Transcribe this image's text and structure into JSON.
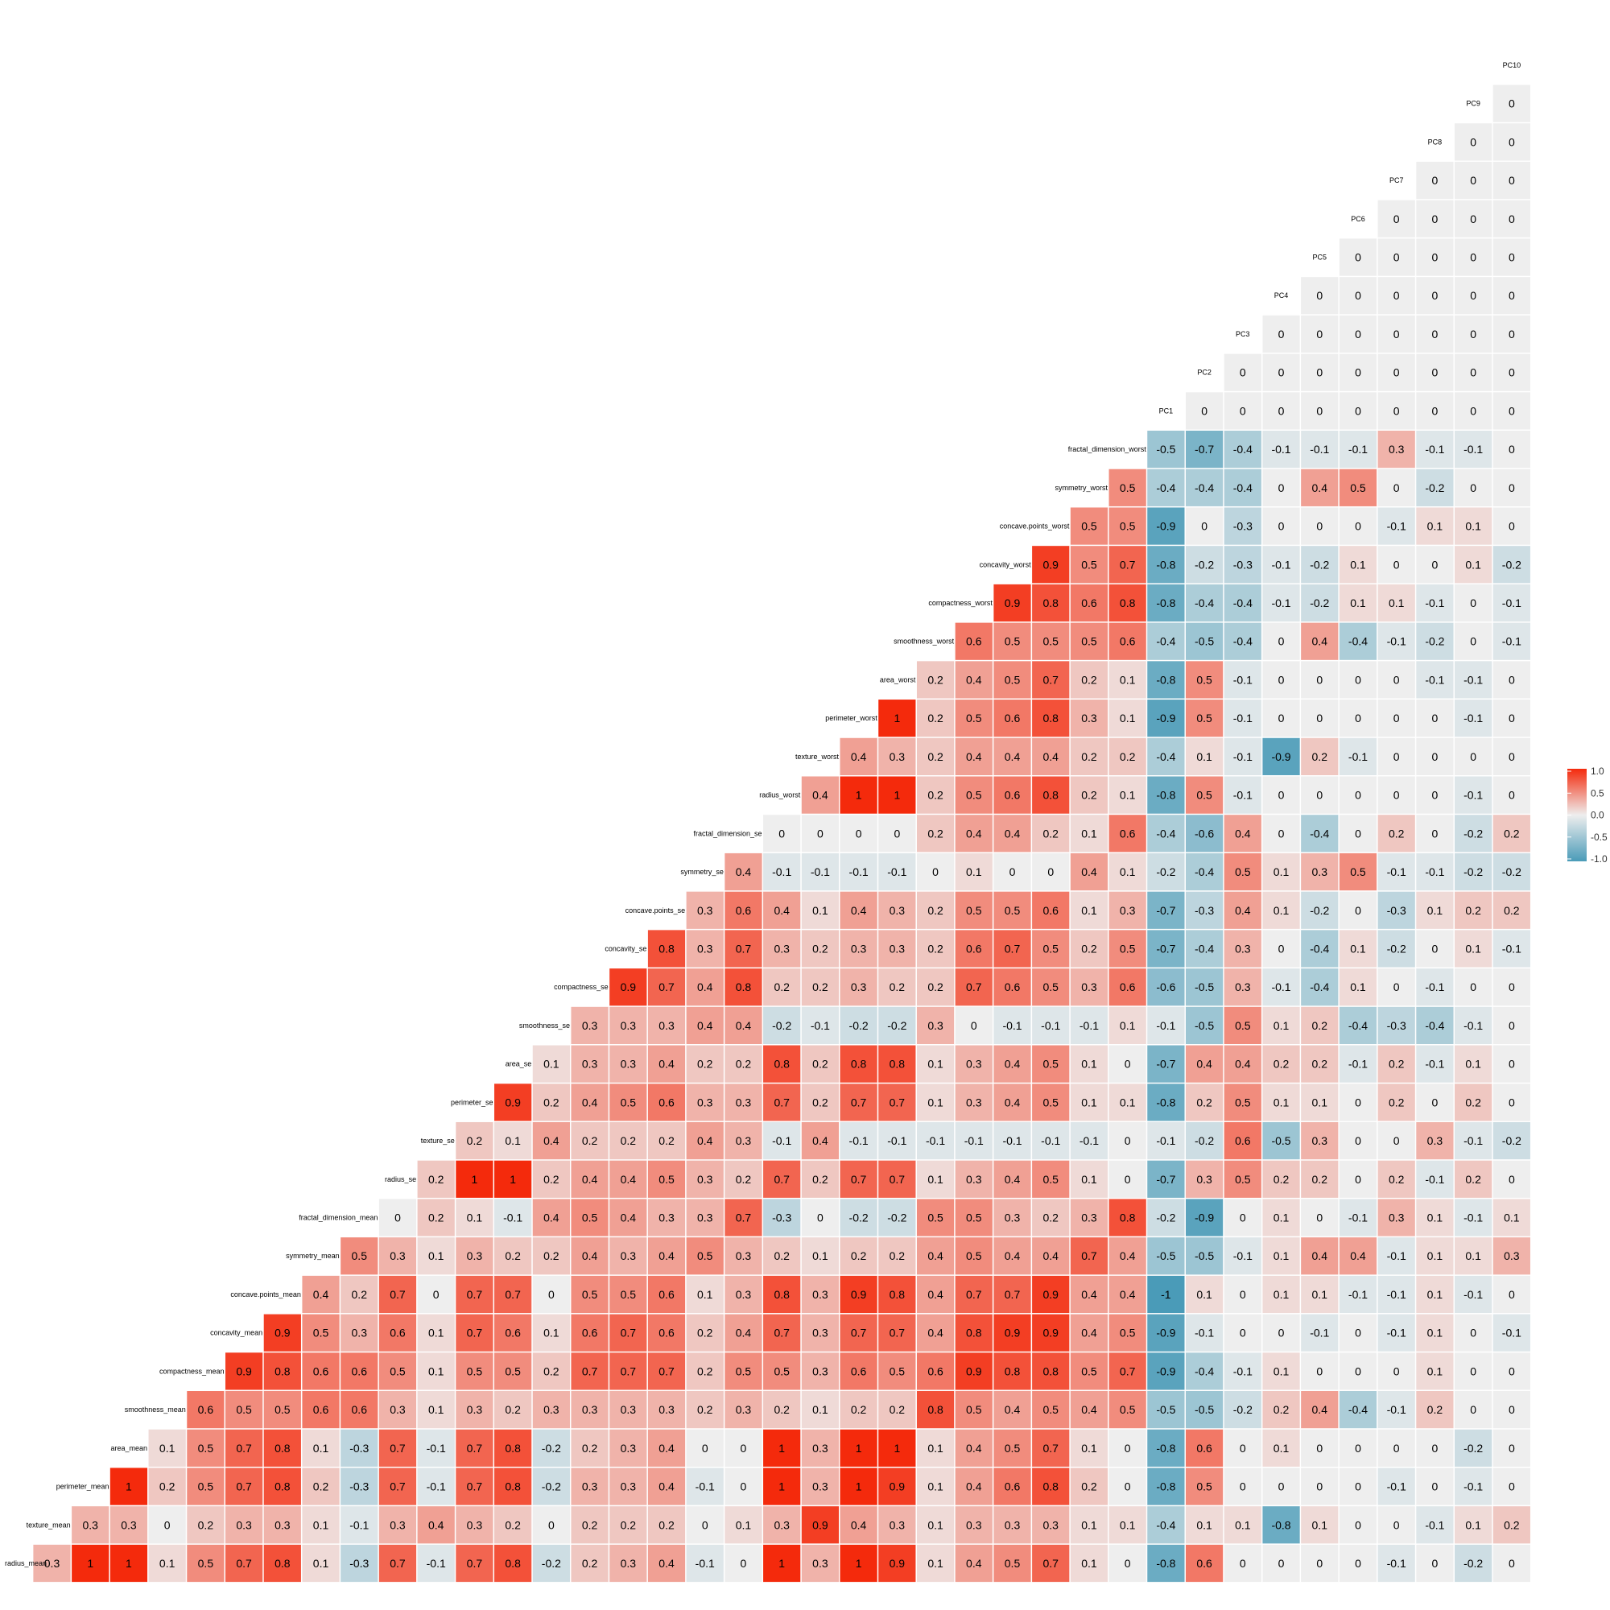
{
  "chart_data": {
    "type": "heatmap",
    "title": "",
    "variables": [
      "radius_mean",
      "texture_mean",
      "perimeter_mean",
      "area_mean",
      "smoothness_mean",
      "compactness_mean",
      "concavity_mean",
      "concave.points_mean",
      "symmetry_mean",
      "fractal_dimension_mean",
      "radius_se",
      "texture_se",
      "perimeter_se",
      "area_se",
      "smoothness_se",
      "compactness_se",
      "concavity_se",
      "concave.points_se",
      "symmetry_se",
      "fractal_dimension_se",
      "radius_worst",
      "texture_worst",
      "perimeter_worst",
      "area_worst",
      "smoothness_worst",
      "compactness_worst",
      "concavity_worst",
      "concave.points_worst",
      "symmetry_worst",
      "fractal_dimension_worst",
      "PC1",
      "PC2",
      "PC3",
      "PC4",
      "PC5",
      "PC6",
      "PC7",
      "PC8",
      "PC9",
      "PC10"
    ],
    "layout": "lower-triangle",
    "colorscale": {
      "low": "#4a9bb8",
      "mid": "#eeeeee",
      "high": "#f42a0c",
      "range": [
        -1,
        1
      ],
      "ticks": [
        "1.0",
        "0.5",
        "0.0",
        "-0.5",
        "-1.0"
      ]
    },
    "rows": [
      [
        0.3,
        1,
        1,
        0.1,
        0.5,
        0.7,
        0.8,
        0.1,
        -0.3,
        0.7,
        -0.1,
        0.7,
        0.8,
        -0.2,
        0.2,
        0.3,
        0.4,
        -0.1,
        0,
        1,
        0.3,
        1,
        0.9,
        0.1,
        0.4,
        0.5,
        0.7,
        0.1,
        0,
        -0.8,
        0.6,
        0,
        0,
        0,
        0,
        -0.1,
        0,
        -0.2,
        0
      ],
      [
        0.3,
        0.3,
        0,
        0.2,
        0.3,
        0.3,
        0.1,
        -0.1,
        0.3,
        0.4,
        0.3,
        0.2,
        0,
        0.2,
        0.2,
        0.2,
        0,
        0.1,
        0.3,
        0.9,
        0.4,
        0.3,
        0.1,
        0.3,
        0.3,
        0.3,
        0.1,
        0.1,
        -0.4,
        0.1,
        0.1,
        -0.8,
        0.1,
        0,
        0,
        -0.1,
        0.1,
        0.2
      ],
      [
        1,
        0.2,
        0.5,
        0.7,
        0.8,
        0.2,
        -0.3,
        0.7,
        -0.1,
        0.7,
        0.8,
        -0.2,
        0.3,
        0.3,
        0.4,
        -0.1,
        0,
        1,
        0.3,
        1,
        0.9,
        0.1,
        0.4,
        0.6,
        0.8,
        0.2,
        0,
        -0.8,
        0.5,
        0,
        0,
        0,
        0,
        -0.1,
        0,
        -0.1,
        0
      ],
      [
        0.1,
        0.5,
        0.7,
        0.8,
        0.1,
        -0.3,
        0.7,
        -0.1,
        0.7,
        0.8,
        -0.2,
        0.2,
        0.3,
        0.4,
        0,
        0,
        1,
        0.3,
        1,
        1,
        0.1,
        0.4,
        0.5,
        0.7,
        0.1,
        0,
        -0.8,
        0.6,
        0,
        0.1,
        0,
        0,
        0,
        0,
        -0.2,
        0
      ],
      [
        0.6,
        0.5,
        0.5,
        0.6,
        0.6,
        0.3,
        0.1,
        0.3,
        0.2,
        0.3,
        0.3,
        0.3,
        0.3,
        0.2,
        0.3,
        0.2,
        0.1,
        0.2,
        0.2,
        0.8,
        0.5,
        0.4,
        0.5,
        0.4,
        0.5,
        -0.5,
        -0.5,
        -0.2,
        0.2,
        0.4,
        -0.4,
        -0.1,
        0.2,
        0,
        0
      ],
      [
        0.9,
        0.8,
        0.6,
        0.6,
        0.5,
        0.1,
        0.5,
        0.5,
        0.2,
        0.7,
        0.7,
        0.7,
        0.2,
        0.5,
        0.5,
        0.3,
        0.6,
        0.5,
        0.6,
        0.9,
        0.8,
        0.8,
        0.5,
        0.7,
        -0.9,
        -0.4,
        -0.1,
        0.1,
        0,
        0,
        0,
        0.1,
        0,
        0
      ],
      [
        0.9,
        0.5,
        0.3,
        0.6,
        0.1,
        0.7,
        0.6,
        0.1,
        0.6,
        0.7,
        0.6,
        0.2,
        0.4,
        0.7,
        0.3,
        0.7,
        0.7,
        0.4,
        0.8,
        0.9,
        0.9,
        0.4,
        0.5,
        -0.9,
        -0.1,
        0,
        0,
        -0.1,
        0,
        -0.1,
        0.1,
        0,
        -0.1
      ],
      [
        0.4,
        0.2,
        0.7,
        0,
        0.7,
        0.7,
        0,
        0.5,
        0.5,
        0.6,
        0.1,
        0.3,
        0.8,
        0.3,
        0.9,
        0.8,
        0.4,
        0.7,
        0.7,
        0.9,
        0.4,
        0.4,
        -1,
        0.1,
        0,
        0.1,
        0.1,
        -0.1,
        -0.1,
        0.1,
        -0.1,
        0
      ],
      [
        0.5,
        0.3,
        0.1,
        0.3,
        0.2,
        0.2,
        0.4,
        0.3,
        0.4,
        0.5,
        0.3,
        0.2,
        0.1,
        0.2,
        0.2,
        0.4,
        0.5,
        0.4,
        0.4,
        0.7,
        0.4,
        -0.5,
        -0.5,
        -0.1,
        0.1,
        0.4,
        0.4,
        -0.1,
        0.1,
        0.1,
        0.3
      ],
      [
        0,
        0.2,
        0.1,
        -0.1,
        0.4,
        0.5,
        0.4,
        0.3,
        0.3,
        0.7,
        -0.3,
        0,
        -0.2,
        -0.2,
        0.5,
        0.5,
        0.3,
        0.2,
        0.3,
        0.8,
        -0.2,
        -0.9,
        0,
        0.1,
        0,
        -0.1,
        0.3,
        0.1,
        -0.1,
        0.1
      ],
      [
        0.2,
        1,
        1,
        0.2,
        0.4,
        0.4,
        0.5,
        0.3,
        0.2,
        0.7,
        0.2,
        0.7,
        0.7,
        0.1,
        0.3,
        0.4,
        0.5,
        0.1,
        0,
        -0.7,
        0.3,
        0.5,
        0.2,
        0.2,
        0,
        0.2,
        -0.1,
        0.2,
        0
      ],
      [
        0.2,
        0.1,
        0.4,
        0.2,
        0.2,
        0.2,
        0.4,
        0.3,
        -0.1,
        0.4,
        -0.1,
        -0.1,
        -0.1,
        -0.1,
        -0.1,
        -0.1,
        -0.1,
        0,
        -0.1,
        -0.2,
        0.6,
        -0.5,
        0.3,
        0,
        0,
        0.3,
        -0.1,
        -0.2
      ],
      [
        0.9,
        0.2,
        0.4,
        0.5,
        0.6,
        0.3,
        0.3,
        0.7,
        0.2,
        0.7,
        0.7,
        0.1,
        0.3,
        0.4,
        0.5,
        0.1,
        0.1,
        -0.8,
        0.2,
        0.5,
        0.1,
        0.1,
        0,
        0.2,
        0,
        0.2,
        0
      ],
      [
        0.1,
        0.3,
        0.3,
        0.4,
        0.2,
        0.2,
        0.8,
        0.2,
        0.8,
        0.8,
        0.1,
        0.3,
        0.4,
        0.5,
        0.1,
        0,
        -0.7,
        0.4,
        0.4,
        0.2,
        0.2,
        -0.1,
        0.2,
        -0.1,
        0.1,
        0
      ],
      [
        0.3,
        0.3,
        0.3,
        0.4,
        0.4,
        -0.2,
        -0.1,
        -0.2,
        -0.2,
        0.3,
        0,
        -0.1,
        -0.1,
        -0.1,
        0.1,
        -0.1,
        -0.5,
        0.5,
        0.1,
        0.2,
        -0.4,
        -0.3,
        -0.4,
        -0.1,
        0
      ],
      [
        0.9,
        0.7,
        0.4,
        0.8,
        0.2,
        0.2,
        0.3,
        0.2,
        0.2,
        0.7,
        0.6,
        0.5,
        0.3,
        0.6,
        -0.6,
        -0.5,
        0.3,
        -0.1,
        -0.4,
        0.1,
        0,
        -0.1,
        0,
        0
      ],
      [
        0.8,
        0.3,
        0.7,
        0.3,
        0.2,
        0.3,
        0.3,
        0.2,
        0.6,
        0.7,
        0.5,
        0.2,
        0.5,
        -0.7,
        -0.4,
        0.3,
        0,
        -0.4,
        0.1,
        -0.2,
        0,
        0.1,
        -0.1
      ],
      [
        0.3,
        0.6,
        0.4,
        0.1,
        0.4,
        0.3,
        0.2,
        0.5,
        0.5,
        0.6,
        0.1,
        0.3,
        -0.7,
        -0.3,
        0.4,
        0.1,
        -0.2,
        0,
        -0.3,
        0.1,
        0.2,
        0.2
      ],
      [
        0.4,
        -0.1,
        -0.1,
        -0.1,
        -0.1,
        0,
        0.1,
        0,
        0,
        0.4,
        0.1,
        -0.2,
        -0.4,
        0.5,
        0.1,
        0.3,
        0.5,
        -0.1,
        -0.1,
        -0.2,
        -0.2
      ],
      [
        0,
        0,
        0,
        0,
        0.2,
        0.4,
        0.4,
        0.2,
        0.1,
        0.6,
        -0.4,
        -0.6,
        0.4,
        0,
        -0.4,
        0,
        0.2,
        0,
        -0.2,
        0.2
      ],
      [
        0.4,
        1,
        1,
        0.2,
        0.5,
        0.6,
        0.8,
        0.2,
        0.1,
        -0.8,
        0.5,
        -0.1,
        0,
        0,
        0,
        0,
        0,
        -0.1,
        0
      ],
      [
        0.4,
        0.3,
        0.2,
        0.4,
        0.4,
        0.4,
        0.2,
        0.2,
        -0.4,
        0.1,
        -0.1,
        -0.9,
        0.2,
        -0.1,
        0,
        0,
        0,
        0
      ],
      [
        1,
        0.2,
        0.5,
        0.6,
        0.8,
        0.3,
        0.1,
        -0.9,
        0.5,
        -0.1,
        0,
        0,
        0,
        0,
        0,
        -0.1,
        0
      ],
      [
        0.2,
        0.4,
        0.5,
        0.7,
        0.2,
        0.1,
        -0.8,
        0.5,
        -0.1,
        0,
        0,
        0,
        0,
        -0.1,
        -0.1,
        0
      ],
      [
        0.6,
        0.5,
        0.5,
        0.5,
        0.6,
        -0.4,
        -0.5,
        -0.4,
        0,
        0.4,
        -0.4,
        -0.1,
        -0.2,
        0,
        -0.1
      ],
      [
        0.9,
        0.8,
        0.6,
        0.8,
        -0.8,
        -0.4,
        -0.4,
        -0.1,
        -0.2,
        0.1,
        0.1,
        -0.1,
        0,
        -0.1
      ],
      [
        0.9,
        0.5,
        0.7,
        -0.8,
        -0.2,
        -0.3,
        -0.1,
        -0.2,
        0.1,
        0,
        0,
        0.1,
        -0.2
      ],
      [
        0.5,
        0.5,
        -0.9,
        0,
        -0.3,
        0,
        0,
        0,
        -0.1,
        0.1,
        0.1,
        0
      ],
      [
        0.5,
        -0.4,
        -0.4,
        -0.4,
        0,
        0.4,
        0.5,
        0,
        -0.2,
        0,
        0
      ],
      [
        -0.5,
        -0.7,
        -0.4,
        -0.1,
        -0.1,
        -0.1,
        0.3,
        -0.1,
        -0.1,
        0
      ],
      [
        0,
        0,
        0,
        0,
        0,
        0,
        0,
        0,
        0
      ],
      [
        0,
        0,
        0,
        0,
        0,
        0,
        0,
        0
      ],
      [
        0,
        0,
        0,
        0,
        0,
        0,
        0
      ],
      [
        0,
        0,
        0,
        0,
        0,
        0
      ],
      [
        0,
        0,
        0,
        0,
        0
      ],
      [
        0,
        0,
        0,
        0
      ],
      [
        0,
        0,
        0
      ],
      [
        0,
        0
      ],
      [
        0
      ]
    ]
  }
}
